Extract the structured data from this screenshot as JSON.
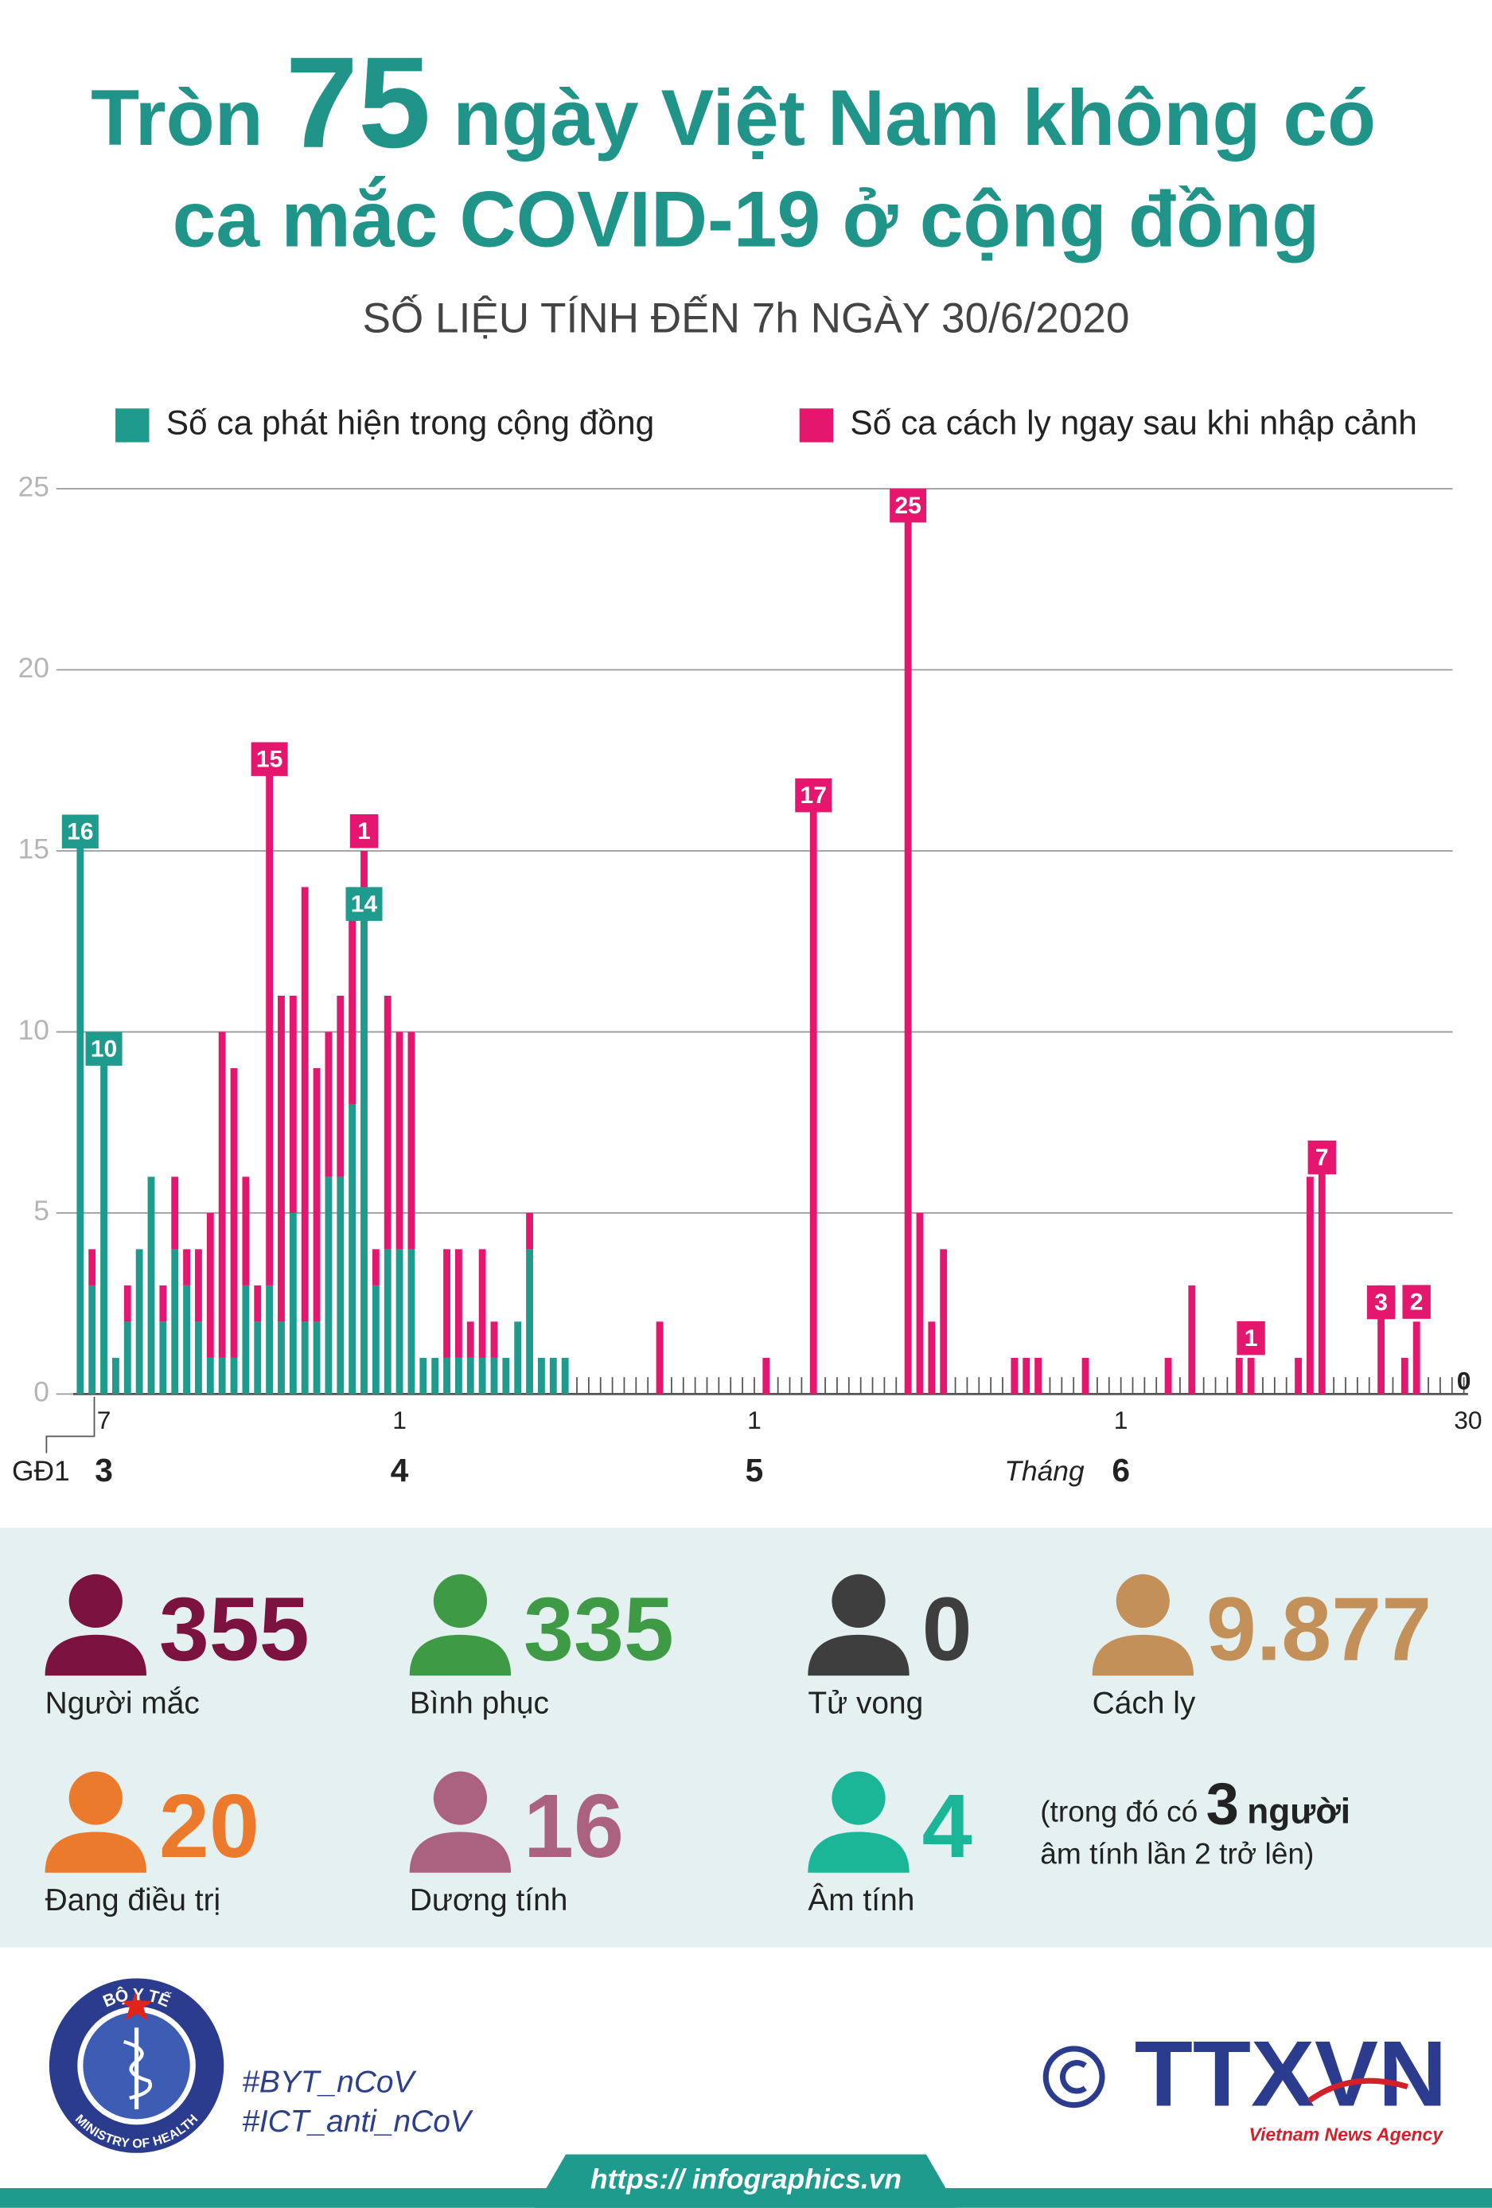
{
  "header": {
    "title_pre": "Tròn",
    "title_number": "75",
    "title_post": "ngày Việt Nam không có",
    "title_line2": "ca mắc COVID-19 ở cộng đồng",
    "subtitle": "SỐ LIỆU TÍNH ĐẾN 7h NGÀY 30/6/2020"
  },
  "chart_data": {
    "type": "bar",
    "stacked": true,
    "grid": true,
    "ylim": [
      0,
      25
    ],
    "yticks": [
      0,
      5,
      10,
      15,
      20,
      25
    ],
    "categories": [
      "GĐ1",
      null,
      "7",
      null,
      null,
      null,
      null,
      null,
      null,
      null,
      null,
      null,
      null,
      null,
      null,
      null,
      null,
      null,
      null,
      null,
      null,
      null,
      null,
      null,
      null,
      null,
      null,
      "1",
      null,
      null,
      null,
      null,
      null,
      null,
      null,
      null,
      null,
      null,
      null,
      null,
      null,
      null,
      null,
      null,
      null,
      null,
      null,
      null,
      null,
      null,
      null,
      null,
      null,
      null,
      null,
      null,
      null,
      "1",
      null,
      null,
      null,
      null,
      null,
      null,
      null,
      null,
      null,
      null,
      null,
      null,
      null,
      null,
      null,
      null,
      null,
      null,
      null,
      null,
      null,
      null,
      null,
      null,
      null,
      null,
      null,
      null,
      null,
      null,
      "1",
      null,
      null,
      null,
      null,
      null,
      null,
      null,
      null,
      null,
      null,
      null,
      null,
      null,
      null,
      null,
      null,
      null,
      null,
      null,
      null,
      null,
      null,
      null,
      null,
      null,
      null,
      null,
      null,
      "30"
    ],
    "months": [
      "3",
      "4",
      "5",
      "6"
    ],
    "month_axis_label": "Tháng",
    "series": [
      {
        "name": "Số ca phát hiện trong cộng đồng",
        "color": "#1f9b8e",
        "values": [
          16,
          3,
          10,
          1,
          2,
          4,
          6,
          2,
          4,
          3,
          2,
          1,
          1,
          1,
          3,
          2,
          3,
          2,
          5,
          2,
          2,
          6,
          6,
          8,
          14,
          3,
          4,
          4,
          4,
          1,
          1,
          1,
          1,
          1,
          1,
          1,
          1,
          2,
          4,
          1,
          1,
          1,
          0,
          0,
          0,
          0,
          0,
          0,
          0,
          0,
          0,
          0,
          0,
          0,
          0,
          0,
          0,
          0,
          0,
          0,
          0,
          0,
          0,
          0,
          0,
          0,
          0,
          0,
          0,
          0,
          0,
          0,
          0,
          0,
          0,
          0,
          0,
          0,
          0,
          0,
          0,
          0,
          0,
          0,
          0,
          0,
          0,
          0,
          0,
          0,
          0,
          0,
          0,
          0,
          0,
          0,
          0,
          0,
          0,
          0,
          0,
          0,
          0,
          0,
          0,
          0,
          0,
          0,
          0,
          0,
          0,
          0,
          0,
          0,
          0,
          0,
          0,
          0
        ],
        "value_labels": [
          "16",
          null,
          "10",
          null,
          null,
          null,
          null,
          null,
          null,
          null,
          null,
          null,
          null,
          null,
          null,
          null,
          null,
          null,
          null,
          null,
          null,
          null,
          null,
          null,
          "14",
          null,
          null,
          null,
          null,
          null,
          null,
          null,
          null,
          null,
          null,
          null,
          null,
          null,
          null,
          null,
          null,
          null,
          null,
          null,
          null,
          null,
          null,
          null,
          null,
          null,
          null,
          null,
          null,
          null,
          null,
          null,
          null,
          null,
          null,
          null,
          null,
          null,
          null,
          null,
          null,
          null,
          null,
          null,
          null,
          null,
          null,
          null,
          null,
          null,
          null,
          null,
          null,
          null,
          null,
          null,
          null,
          null,
          null,
          null,
          null,
          null,
          null,
          null,
          null,
          null,
          null,
          null,
          null,
          null,
          null,
          null,
          null,
          null,
          null,
          null,
          null,
          null,
          null,
          null,
          null,
          null,
          null,
          null,
          null,
          null,
          null,
          null,
          null,
          null,
          null,
          null,
          null,
          null
        ]
      },
      {
        "name": "Số ca cách ly ngay sau khi nhập cảnh",
        "color": "#e5166e",
        "values": [
          0,
          1,
          0,
          0,
          1,
          0,
          0,
          1,
          2,
          1,
          2,
          4,
          9,
          8,
          3,
          1,
          15,
          9,
          6,
          12,
          7,
          4,
          5,
          6,
          1,
          1,
          7,
          6,
          6,
          0,
          0,
          3,
          3,
          1,
          3,
          1,
          0,
          0,
          1,
          0,
          0,
          0,
          0,
          0,
          0,
          0,
          0,
          0,
          0,
          2,
          0,
          0,
          0,
          0,
          0,
          0,
          0,
          0,
          1,
          0,
          0,
          0,
          17,
          0,
          0,
          0,
          0,
          0,
          0,
          0,
          25,
          5,
          2,
          4,
          0,
          0,
          0,
          0,
          0,
          1,
          1,
          1,
          0,
          0,
          0,
          1,
          0,
          0,
          0,
          0,
          0,
          0,
          1,
          0,
          3,
          0,
          0,
          0,
          1,
          1,
          0,
          0,
          0,
          1,
          6,
          7,
          0,
          0,
          0,
          0,
          3,
          0,
          1,
          2,
          0,
          0,
          0,
          0
        ],
        "value_labels": [
          null,
          null,
          null,
          null,
          null,
          null,
          null,
          null,
          null,
          null,
          null,
          null,
          null,
          null,
          null,
          null,
          "15",
          null,
          null,
          null,
          null,
          null,
          null,
          null,
          "1",
          null,
          null,
          null,
          null,
          null,
          null,
          null,
          null,
          null,
          null,
          null,
          null,
          null,
          null,
          null,
          null,
          null,
          null,
          null,
          null,
          null,
          null,
          null,
          null,
          null,
          null,
          null,
          null,
          null,
          null,
          null,
          null,
          null,
          null,
          null,
          null,
          null,
          "17",
          null,
          null,
          null,
          null,
          null,
          null,
          null,
          "25",
          null,
          null,
          null,
          null,
          null,
          null,
          null,
          null,
          null,
          null,
          null,
          null,
          null,
          null,
          null,
          null,
          null,
          null,
          null,
          null,
          null,
          null,
          null,
          null,
          null,
          null,
          null,
          null,
          "1",
          null,
          null,
          null,
          null,
          null,
          "7",
          null,
          null,
          null,
          null,
          "3",
          null,
          null,
          "2",
          null,
          null,
          null,
          "0"
        ]
      }
    ]
  },
  "stats": [
    {
      "value": "355",
      "label": "Người mắc"
    },
    {
      "value": "335",
      "label": "Bình phục"
    },
    {
      "value": "0",
      "label": "Tử vong"
    },
    {
      "value": "9.877",
      "label": "Cách ly"
    },
    {
      "value": "20",
      "label": "Đang điều trị"
    },
    {
      "value": "16",
      "label": "Dương tính"
    },
    {
      "value": "4",
      "label": "Âm tính"
    }
  ],
  "stats_note": {
    "before": "(trong đó có",
    "number": "3",
    "after": "người",
    "line2": "âm tính lần 2 trở lên)"
  },
  "footer": {
    "logo_top": "BỘ Y TẾ",
    "logo_bottom": "MINISTRY OF HEALTH",
    "hashtags": [
      "#BYT_nCoV",
      "#ICT_anti_nCoV"
    ],
    "agency": "TTXVN",
    "agency_sub": "Vietnam News Agency",
    "url": "https:// infographics.vn"
  }
}
